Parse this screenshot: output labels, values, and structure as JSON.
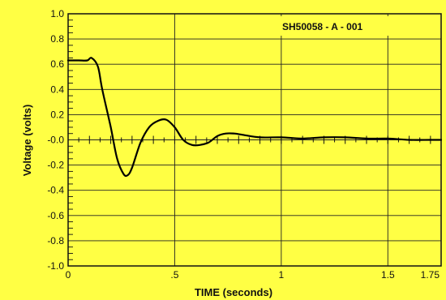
{
  "chart_data": {
    "type": "line",
    "title": "",
    "annotation": "SH50058 - A - 001",
    "xlabel": "TIME  (seconds)",
    "ylabel": "Voltage (volts)",
    "xlim": [
      0,
      1.75
    ],
    "ylim": [
      -1.0,
      1.0
    ],
    "x_ticks": [
      0,
      0.5,
      1,
      1.5,
      1.75
    ],
    "x_tick_labels": [
      "0",
      ".5",
      "1",
      "1.5",
      "1.75"
    ],
    "y_ticks": [
      1.0,
      0.8,
      0.6,
      0.4,
      0.2,
      0.0,
      -0.2,
      -0.4,
      -0.6,
      -0.8,
      -1.0
    ],
    "y_tick_labels": [
      "1.0",
      "0.8",
      "0.6",
      "0.4",
      "0.2",
      "-0.0",
      "-0.2",
      "-0.4",
      "-0.6",
      "-0.8",
      "-1.0"
    ],
    "grid": true,
    "colors": {
      "background": "#ffff44",
      "line": "#000000",
      "grid": "#222222"
    },
    "series": [
      {
        "values_x": [
          0,
          0.05,
          0.09,
          0.11,
          0.14,
          0.16,
          0.2,
          0.23,
          0.26,
          0.28,
          0.3,
          0.34,
          0.38,
          0.42,
          0.46,
          0.5,
          0.54,
          0.58,
          0.62,
          0.66,
          0.7,
          0.74,
          0.78,
          0.82,
          0.9,
          1.0,
          1.1,
          1.2,
          1.3,
          1.4,
          1.5,
          1.6,
          1.7,
          1.75
        ],
        "values_y": [
          0.63,
          0.63,
          0.63,
          0.65,
          0.58,
          0.4,
          0.1,
          -0.15,
          -0.27,
          -0.28,
          -0.22,
          -0.02,
          0.1,
          0.15,
          0.16,
          0.1,
          0.0,
          -0.04,
          -0.04,
          -0.02,
          0.03,
          0.05,
          0.05,
          0.04,
          0.02,
          0.02,
          0.01,
          0.02,
          0.02,
          0.01,
          0.01,
          0.0,
          0.0,
          0.0
        ]
      }
    ]
  }
}
